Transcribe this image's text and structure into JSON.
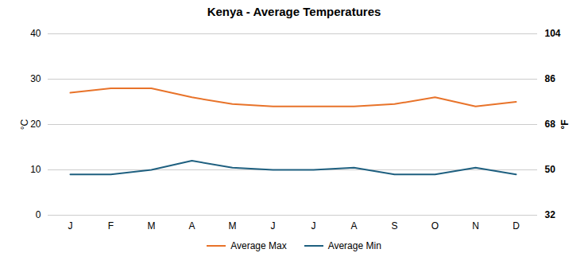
{
  "chart_data": {
    "type": "line",
    "title": "Kenya - Average Temperatures",
    "categories": [
      "J",
      "F",
      "M",
      "A",
      "M",
      "J",
      "J",
      "A",
      "S",
      "O",
      "N",
      "D"
    ],
    "series": [
      {
        "name": "Average Max",
        "color": "#E8732A",
        "values": [
          27,
          28,
          28,
          26,
          24.5,
          24,
          24,
          24,
          24.5,
          26,
          24,
          25
        ]
      },
      {
        "name": "Average Min",
        "color": "#1F6080",
        "values": [
          9,
          9,
          10,
          12,
          10.5,
          10,
          10,
          10.5,
          9,
          9,
          10.5,
          9
        ]
      }
    ],
    "ylim": [
      0,
      40
    ],
    "yticks": [
      0,
      10,
      20,
      30,
      40
    ],
    "y2lim": [
      32,
      104
    ],
    "y2ticks": [
      32,
      50,
      68,
      86,
      104
    ],
    "ylabel": "°C",
    "y2label": "°F",
    "grid": true,
    "legend": "bottom"
  }
}
